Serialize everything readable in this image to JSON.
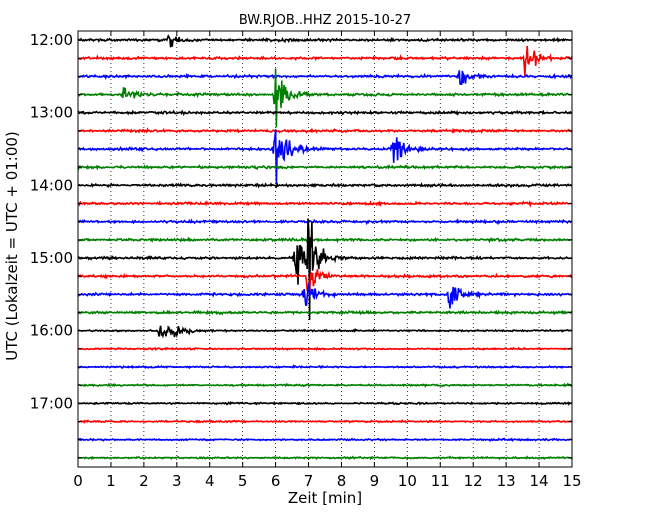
{
  "chart_data": {
    "type": "line",
    "title": "BW.RJOB..HHZ 2015-10-27",
    "xlabel": "Zeit  [min]",
    "ylabel": "UTC (Lokalzeit = UTC + 01:00)",
    "xlim": [
      0,
      15
    ],
    "x_ticks": [
      "0",
      "1",
      "2",
      "3",
      "4",
      "5",
      "6",
      "7",
      "8",
      "9",
      "10",
      "11",
      "12",
      "13",
      "14",
      "15"
    ],
    "y_tick_labels": [
      "12:00",
      "13:00",
      "14:00",
      "15:00",
      "16:00",
      "17:00"
    ],
    "trace_start_times": [
      "12:00",
      "12:15",
      "12:30",
      "12:45",
      "13:00",
      "13:15",
      "13:30",
      "13:45",
      "14:00",
      "14:15",
      "14:30",
      "14:45",
      "15:00",
      "15:15",
      "15:30",
      "15:45",
      "16:00",
      "16:15",
      "16:30",
      "16:45",
      "17:00",
      "17:15",
      "17:30",
      "17:45"
    ],
    "grid": {
      "vertical_dotted": true
    },
    "trace_colors": [
      "#000000",
      "#ff0000",
      "#0000ff",
      "#008000"
    ],
    "events": [
      {
        "trace": 0,
        "minute": 2.8,
        "amp": 0.35
      },
      {
        "trace": 1,
        "minute": 13.6,
        "amp": 0.9
      },
      {
        "trace": 2,
        "minute": 11.6,
        "amp": 0.5
      },
      {
        "trace": 3,
        "minute": 1.4,
        "amp": 0.45
      },
      {
        "trace": 3,
        "minute": 6.0,
        "amp": 1.6
      },
      {
        "trace": 6,
        "minute": 6.0,
        "amp": 2.2
      },
      {
        "trace": 6,
        "minute": 9.6,
        "amp": 1.1
      },
      {
        "trace": 12,
        "minute": 6.6,
        "amp": 1.6
      },
      {
        "trace": 12,
        "minute": 7.0,
        "amp": 2.0
      },
      {
        "trace": 13,
        "minute": 7.0,
        "amp": 0.9
      },
      {
        "trace": 14,
        "minute": 6.9,
        "amp": 0.7
      },
      {
        "trace": 14,
        "minute": 11.3,
        "amp": 0.9
      },
      {
        "trace": 16,
        "minute": 2.5,
        "amp": 0.5
      },
      {
        "trace": 16,
        "minute": 2.9,
        "amp": 0.4
      }
    ]
  }
}
